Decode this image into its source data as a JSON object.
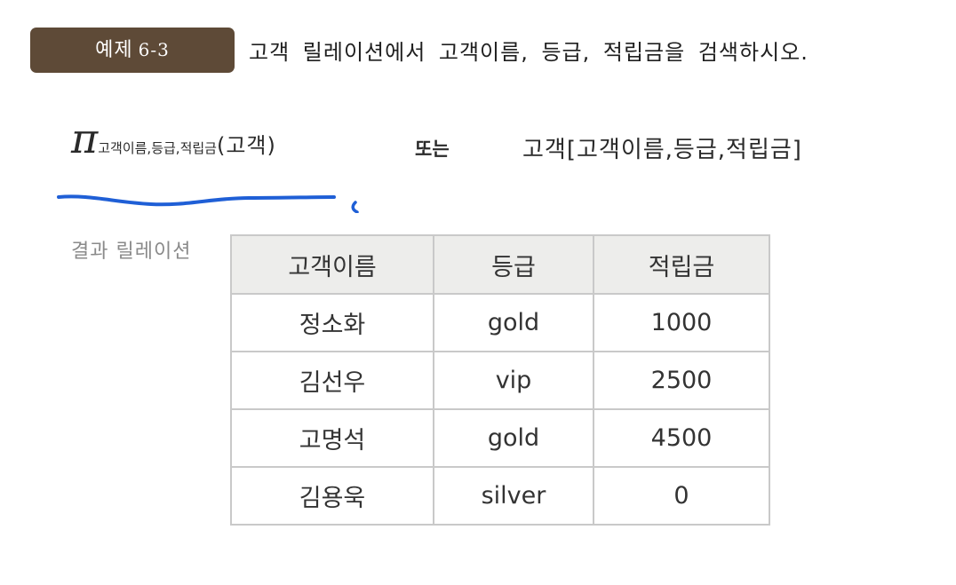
{
  "header": {
    "badge_label": "예제",
    "badge_number": "6-3",
    "question": "고객 릴레이션에서 고객이름, 등급, 적립금을 검색하시오."
  },
  "formula": {
    "pi_symbol": "π",
    "pi_subscript": "고객이름,등급,적립금",
    "pi_argument": "(고객)",
    "or_word": "또는",
    "alternative": "고객[고객이름,등급,적립금]"
  },
  "annotation": {
    "underline_color": "#1f5fd6"
  },
  "result": {
    "label": "결과 릴레이션",
    "columns": [
      "고객이름",
      "등급",
      "적립금"
    ],
    "rows": [
      [
        "정소화",
        "gold",
        "1000"
      ],
      [
        "김선우",
        "vip",
        "2500"
      ],
      [
        "고명석",
        "gold",
        "4500"
      ],
      [
        "김용욱",
        "silver",
        "0"
      ]
    ]
  }
}
